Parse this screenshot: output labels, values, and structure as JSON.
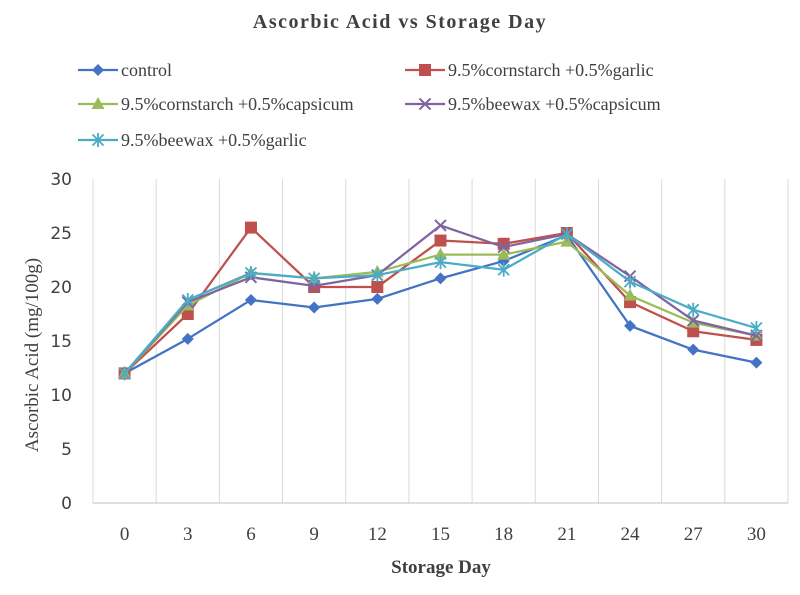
{
  "chart_data": {
    "type": "line",
    "title": "Ascorbic Acid vs Storage Day",
    "xlabel": "Storage Day",
    "ylabel": "Ascorbic Acid (mg/100g)",
    "categories": [
      "0",
      "3",
      "6",
      "9",
      "12",
      "15",
      "18",
      "21",
      "24",
      "27",
      "30"
    ],
    "ylim": [
      0,
      30
    ],
    "yticks": [
      "0",
      "5",
      "10",
      "15",
      "20",
      "25",
      "30"
    ],
    "grid": "vertical",
    "legend_position": "top",
    "series": [
      {
        "name": "control",
        "color": "#4472C4",
        "marker": "diamond",
        "values": [
          12.0,
          15.2,
          18.8,
          18.1,
          18.9,
          20.8,
          22.4,
          24.8,
          16.4,
          14.2,
          13.0
        ]
      },
      {
        "name": "9.5%cornstarch +0.5%garlic",
        "color": "#C0504D",
        "marker": "square",
        "values": [
          12.0,
          17.5,
          25.5,
          20.0,
          20.0,
          24.3,
          24.0,
          25.0,
          18.6,
          15.9,
          15.1
        ]
      },
      {
        "name": "9.5%cornstarch +0.5%capsicum",
        "color": "#9BBB59",
        "marker": "triangle",
        "values": [
          12.0,
          18.3,
          21.3,
          20.8,
          21.4,
          23.0,
          23.0,
          24.2,
          19.2,
          16.7,
          15.5
        ]
      },
      {
        "name": "9.5%beewax +0.5%capsicum",
        "color": "#8064A2",
        "marker": "x",
        "values": [
          12.0,
          18.6,
          20.9,
          20.1,
          21.1,
          25.7,
          23.7,
          24.9,
          21.0,
          16.9,
          15.5
        ]
      },
      {
        "name": "9.5%beewax +0.5%garlic",
        "color": "#4BACC6",
        "marker": "asterisk",
        "values": [
          12.0,
          18.8,
          21.3,
          20.8,
          21.1,
          22.3,
          21.6,
          24.9,
          20.5,
          17.9,
          16.2
        ]
      }
    ]
  }
}
